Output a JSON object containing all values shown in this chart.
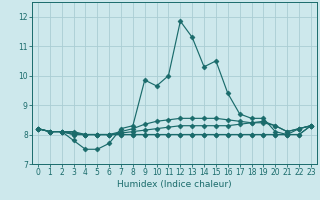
{
  "title": "",
  "xlabel": "Humidex (Indice chaleur)",
  "xlim": [
    -0.5,
    23.5
  ],
  "ylim": [
    7,
    12.5
  ],
  "yticks": [
    7,
    8,
    9,
    10,
    11,
    12
  ],
  "xticks": [
    0,
    1,
    2,
    3,
    4,
    5,
    6,
    7,
    8,
    9,
    10,
    11,
    12,
    13,
    14,
    15,
    16,
    17,
    18,
    19,
    20,
    21,
    22,
    23
  ],
  "bg_color": "#cde8ec",
  "grid_color": "#aacdd4",
  "line_color": "#1a6b6b",
  "lines": [
    [
      8.2,
      8.1,
      8.1,
      7.8,
      7.5,
      7.5,
      7.7,
      8.2,
      8.3,
      9.85,
      9.65,
      10.0,
      11.85,
      11.3,
      10.3,
      10.5,
      9.4,
      8.7,
      8.55,
      8.55,
      8.1,
      8.0,
      8.2,
      8.3
    ],
    [
      8.2,
      8.1,
      8.1,
      8.05,
      8.0,
      8.0,
      8.0,
      8.05,
      8.1,
      8.15,
      8.2,
      8.25,
      8.3,
      8.3,
      8.3,
      8.3,
      8.3,
      8.35,
      8.4,
      8.45,
      8.3,
      8.1,
      8.2,
      8.3
    ],
    [
      8.2,
      8.1,
      8.1,
      8.0,
      8.0,
      8.0,
      8.0,
      8.0,
      8.0,
      8.0,
      8.0,
      8.0,
      8.0,
      8.0,
      8.0,
      8.0,
      8.0,
      8.0,
      8.0,
      8.0,
      8.0,
      8.0,
      8.0,
      8.3
    ],
    [
      8.2,
      8.1,
      8.1,
      8.0,
      8.0,
      8.0,
      8.0,
      8.0,
      8.0,
      8.0,
      8.0,
      8.0,
      8.0,
      8.0,
      8.0,
      8.0,
      8.0,
      8.0,
      8.0,
      8.0,
      8.0,
      8.0,
      8.0,
      8.3
    ],
    [
      8.2,
      8.1,
      8.1,
      8.1,
      8.0,
      8.0,
      8.0,
      8.1,
      8.2,
      8.35,
      8.45,
      8.5,
      8.55,
      8.55,
      8.55,
      8.55,
      8.5,
      8.45,
      8.4,
      8.4,
      8.3,
      8.1,
      8.2,
      8.3
    ]
  ],
  "marker": "D",
  "marker_size": 2.5,
  "tick_fontsize": 5.5,
  "xlabel_fontsize": 6.5
}
